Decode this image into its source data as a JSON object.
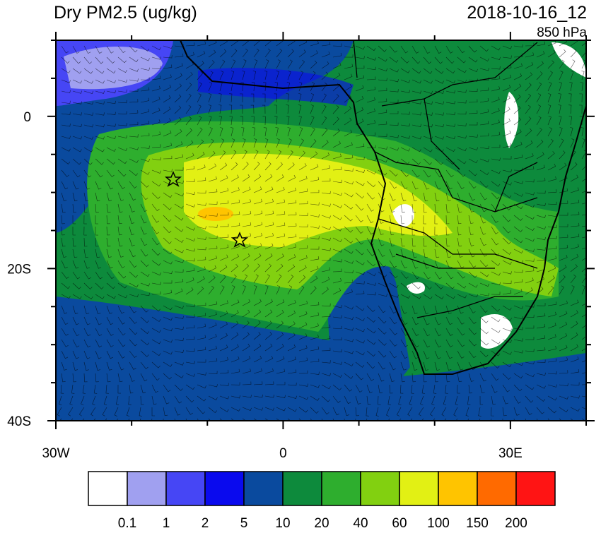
{
  "map": {
    "title": "Dry PM2.5 (ug/kg)",
    "date": "2018-10-16_12",
    "level": "850 hPa",
    "xlim": [
      -30,
      40
    ],
    "ylim": [
      -40,
      10
    ],
    "xticks": [
      {
        "value": -30,
        "label": "30W"
      },
      {
        "value": 0,
        "label": "0"
      },
      {
        "value": 30,
        "label": "30E"
      }
    ],
    "x_minor_ticks": [
      -20,
      -10,
      10,
      20,
      40
    ],
    "yticks": [
      {
        "value": 0,
        "label": "0"
      },
      {
        "value": -20,
        "label": "20S"
      },
      {
        "value": -40,
        "label": "40S"
      }
    ],
    "y_minor_ticks": [
      10,
      5,
      -5,
      -10,
      -15,
      -25,
      -30,
      -35
    ],
    "colorbar": {
      "colors": [
        "#ffffff",
        "#a0a0f0",
        "#4646f5",
        "#0a0aee",
        "#0a4a9e",
        "#0d8a3c",
        "#2eae2e",
        "#82d010",
        "#e2f014",
        "#ffc400",
        "#ff6a00",
        "#ff1414"
      ],
      "labels": [
        "0.1",
        "1",
        "2",
        "5",
        "10",
        "20",
        "40",
        "60",
        "100",
        "150",
        "200"
      ]
    }
  }
}
